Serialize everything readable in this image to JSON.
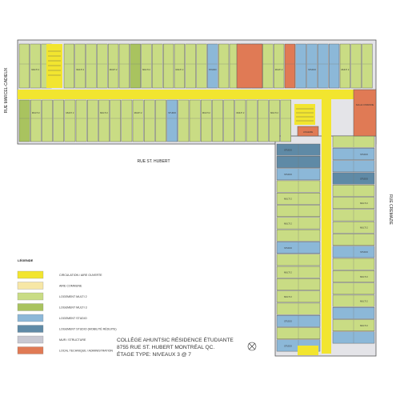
{
  "colors": {
    "circulation": "#f2e52f",
    "commune": "#f7e7a6",
    "multi2": "#c9dc84",
    "multi3": "#a9c35f",
    "studio": "#8cb8d8",
    "studio_mr": "#5f8aa6",
    "mur": "#c8c8d2",
    "technique": "#e07a55"
  },
  "streets": {
    "left": "RUE MARCEL-CADIEUX",
    "top": "RUE ST. HUBERT",
    "right": "RUE CREMAZIE"
  },
  "legend": {
    "title": "LÉGENDE",
    "items": [
      {
        "color": "#f2e52f",
        "label": "CIRCULATION / AIRE OUVERTE"
      },
      {
        "color": "#f7e7a6",
        "label": "AIRE COMMUNE"
      },
      {
        "color": "#c9dc84",
        "label": "LOGEMENT MULTI 2"
      },
      {
        "color": "#a9c35f",
        "label": "LOGEMENT MULTI 3"
      },
      {
        "color": "#8cb8d8",
        "label": "LOGEMENT STUDIO"
      },
      {
        "color": "#5f8aa6",
        "label": "LOGEMENT STUDIO (MOBILITÉ RÉDUITE)"
      },
      {
        "color": "#c8c8d2",
        "label": "MUR / STRUCTURE"
      },
      {
        "color": "#e07a55",
        "label": "LOCAL TECHNIQUE / ADMINISTRATION"
      }
    ]
  },
  "title_block": {
    "line1": "COLLÈGE AHUNTSIC RÉSIDENCE ÉTUDIANTE",
    "line2": "8755 RUE ST. HUBERT MONTRÉAL QC.",
    "line3": "ÉTAGE TYPE: NIVEAUX 3 @ 7"
  },
  "labels": {
    "lingerie": "LINGERIE",
    "salle_commune": "SALLE COMMUNE",
    "multi2": "MULTI 2",
    "multi3": "MULTI 3",
    "studio": "STUDIO"
  }
}
